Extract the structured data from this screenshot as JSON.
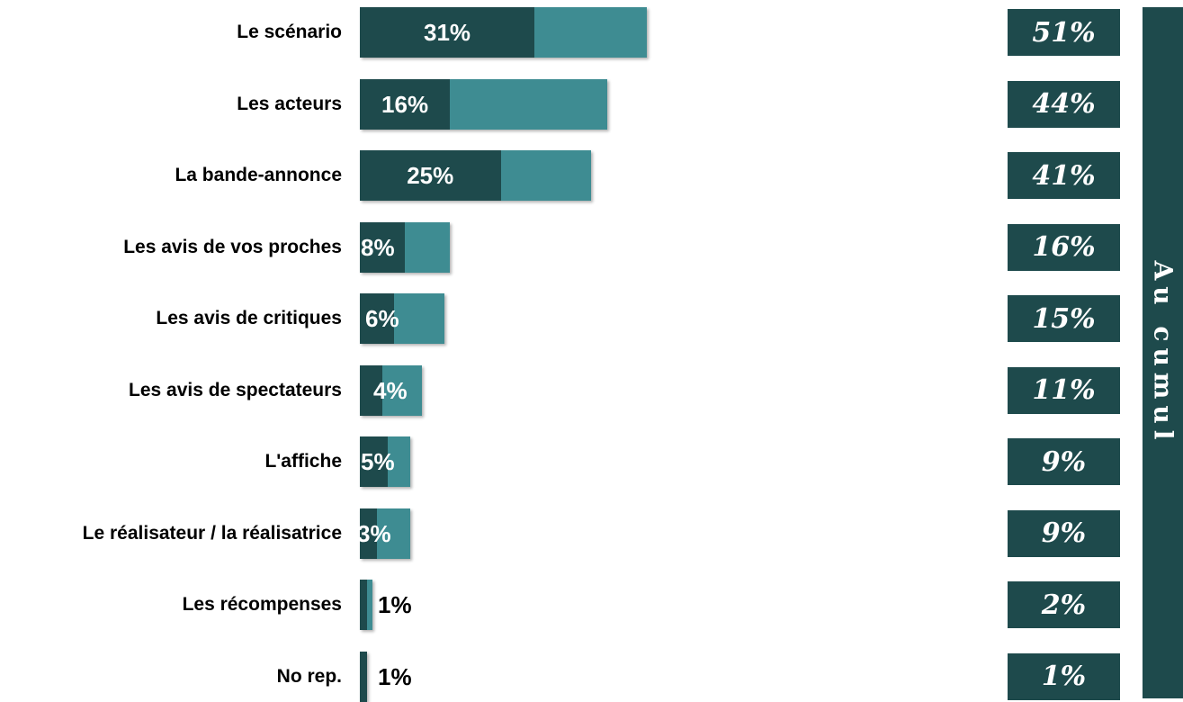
{
  "chart_data": {
    "type": "bar",
    "orientation": "horizontal",
    "stacked": true,
    "categories": [
      "Le scénario",
      "Les acteurs",
      "La bande-annonce",
      "Les avis de vos proches",
      "Les avis de critiques",
      "Les avis de spectateurs",
      "L'affiche",
      "Le réalisateur / la réalisatrice",
      "Les récompenses",
      "No rep."
    ],
    "series": [
      {
        "labels": [
          "31%",
          "16%",
          "25%",
          "8%",
          "6%",
          "4%",
          "5%",
          "3%",
          "1%",
          "1%"
        ],
        "values": [
          31,
          16,
          25,
          8,
          6,
          4,
          5,
          3,
          1,
          1
        ],
        "color": "#1e4a4c"
      },
      {
        "values": [
          20,
          28,
          16,
          8,
          9,
          7,
          4,
          6,
          1,
          0
        ],
        "color": "#3e8c92"
      }
    ],
    "cumul": {
      "title": "Au cumul",
      "labels": [
        "51%",
        "44%",
        "41%",
        "16%",
        "15%",
        "11%",
        "9%",
        "9%",
        "2%",
        "1%"
      ],
      "values": [
        51,
        44,
        41,
        16,
        15,
        11,
        9,
        9,
        2,
        1
      ],
      "color": "#1e4a4c"
    },
    "label_color_inside": "#ffffff",
    "label_color_outside": "#000000"
  }
}
